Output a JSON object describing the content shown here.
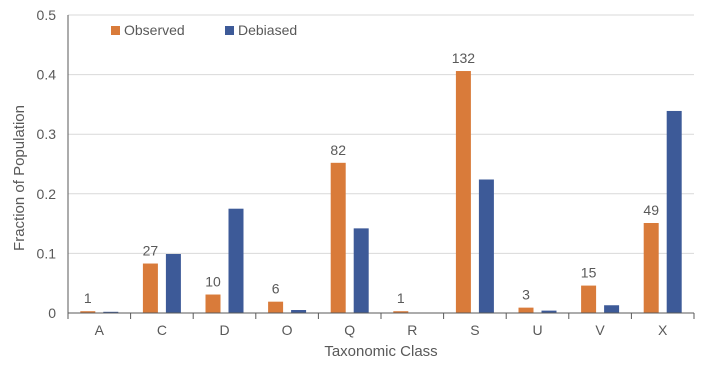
{
  "chart_data": {
    "type": "bar",
    "title": "",
    "xlabel": "Taxonomic Class",
    "ylabel": "Fraction of Population",
    "ylim": [
      0,
      0.5
    ],
    "yticks": [
      "0",
      "0.1",
      "0.2",
      "0.3",
      "0.4",
      "0.5"
    ],
    "grid": true,
    "legend_position": "top-left",
    "categories": [
      "A",
      "C",
      "D",
      "O",
      "Q",
      "R",
      "S",
      "U",
      "V",
      "X"
    ],
    "series": [
      {
        "name": "Observed",
        "color": "#D97B3A",
        "values": [
          0.003,
          0.083,
          0.031,
          0.019,
          0.252,
          0.003,
          0.406,
          0.009,
          0.046,
          0.151
        ],
        "labels": [
          "1",
          "27",
          "10",
          "6",
          "82",
          "1",
          "132",
          "3",
          "15",
          "49"
        ]
      },
      {
        "name": "Debiased",
        "color": "#3D5A98",
        "values": [
          0.002,
          0.099,
          0.175,
          0.005,
          0.142,
          0.0,
          0.224,
          0.004,
          0.013,
          0.339
        ],
        "labels": null
      }
    ],
    "axis_color": "#595959",
    "grid_color": "#D9D9D9",
    "text_color": "#595959"
  }
}
